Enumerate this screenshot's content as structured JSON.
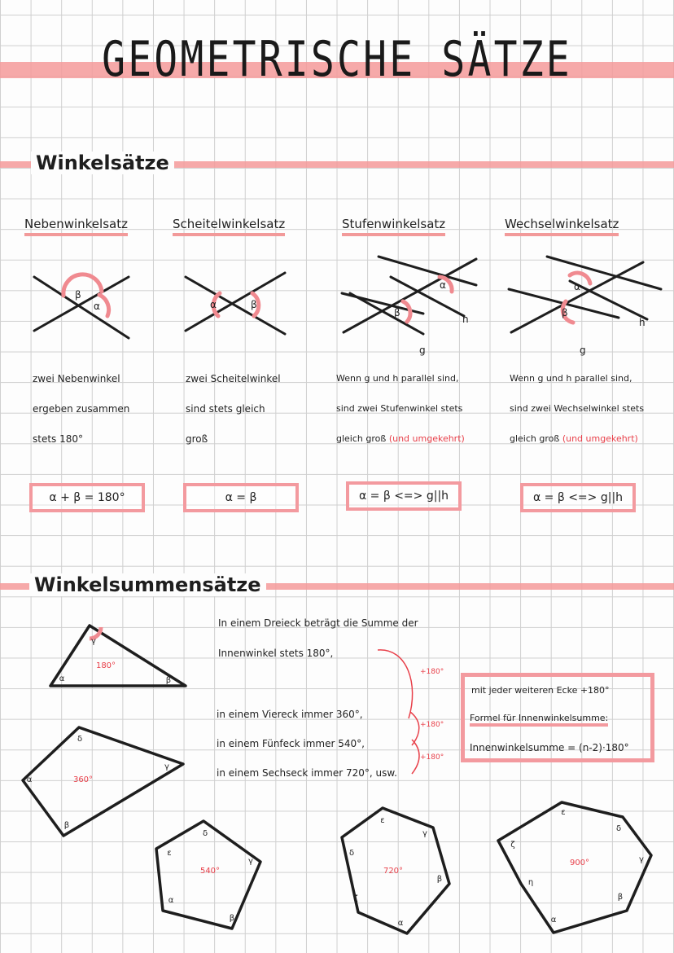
{
  "title": "GEOMETRISCHE SÄTZE",
  "section1": "Winkelsätze",
  "theorems": [
    {
      "heading": "Nebenwinkelsatz",
      "lines": [
        "zwei Nebenwinkel",
        "ergeben zusammen",
        "stets 180°"
      ],
      "extra": "",
      "formula": "α + β = 180°",
      "labels": [
        "β",
        "α"
      ]
    },
    {
      "heading": "Scheitelwinkelsatz",
      "lines": [
        "zwei Scheitelwinkel",
        "sind stets gleich",
        "groß"
      ],
      "extra": "",
      "formula": "α = β",
      "labels": [
        "α",
        "β"
      ]
    },
    {
      "heading": "Stufenwinkelsatz",
      "lines": [
        "Wenn g und h parallel sind,",
        "sind zwei Stufenwinkel stets",
        "gleich groß"
      ],
      "extra": "(und umgekehrt)",
      "formula": "α = β <=> g||h",
      "labels": [
        "α",
        "β",
        "h",
        "g"
      ]
    },
    {
      "heading": "Wechselwinkelsatz",
      "lines": [
        "Wenn g und h parallel sind,",
        "sind zwei Wechselwinkel stets",
        "gleich groß"
      ],
      "extra": "(und umgekehrt)",
      "formula": "α = β <=> g||h",
      "labels": [
        "α",
        "β",
        "h",
        "g"
      ]
    }
  ],
  "section2": "Winkelsummensätze",
  "sum_text": [
    "In einem Dreieck beträgt die Summe der",
    "Innenwinkel stets 180°,",
    "in einem Viereck immer 360°,",
    "in einem Fünfeck immer 540°,",
    "in einem Sechseck immer 720°, usw."
  ],
  "plus_labels": [
    "+180°",
    "+180°",
    "+180°"
  ],
  "formula_box": {
    "note": "mit jeder weiteren Ecke +180°",
    "heading": "Formel für Innenwinkelsumme:",
    "formula": "Innenwinkelsumme = (n-2)·180°"
  },
  "polygons": [
    {
      "sum": "180°",
      "labels": [
        "γ",
        "α",
        "β"
      ]
    },
    {
      "sum": "360°",
      "labels": [
        "δ",
        "α",
        "β",
        "γ"
      ]
    },
    {
      "sum": "540°",
      "labels": [
        "δ",
        "ε",
        "γ",
        "α",
        "β"
      ]
    },
    {
      "sum": "720°",
      "labels": [
        "ε",
        "γ",
        "δ",
        "β",
        "ζ",
        "α"
      ]
    },
    {
      "sum": "900°",
      "labels": [
        "ε",
        "δ",
        "ζ",
        "γ",
        "η",
        "β",
        "α"
      ]
    }
  ],
  "colors": {
    "accent": "#f39a9f",
    "red_text": "#e8404a",
    "ink": "#1e1e1e"
  }
}
